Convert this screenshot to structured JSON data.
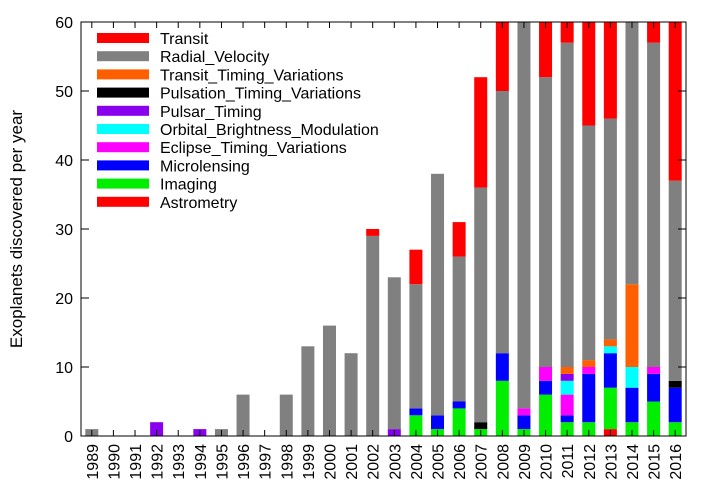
{
  "chart_data": {
    "type": "bar",
    "stacked": true,
    "title": "",
    "xlabel": "",
    "ylabel": "Exoplanets discovered per year",
    "ylim": [
      0,
      60
    ],
    "yticks": [
      0,
      10,
      20,
      30,
      40,
      50,
      60
    ],
    "grid": false,
    "legend_position": "top-left",
    "categories": [
      "1989",
      "1990",
      "1991",
      "1992",
      "1993",
      "1994",
      "1995",
      "1996",
      "1997",
      "1998",
      "1999",
      "2000",
      "2001",
      "2002",
      "2003",
      "2004",
      "2005",
      "2006",
      "2007",
      "2008",
      "2009",
      "2010",
      "2011",
      "2012",
      "2013",
      "2014",
      "2015",
      "2016"
    ],
    "series": [
      {
        "name": "Astrometry",
        "color": "#ff0000",
        "values": [
          0,
          0,
          0,
          0,
          0,
          0,
          0,
          0,
          0,
          0,
          0,
          0,
          0,
          0,
          0,
          0,
          0,
          0,
          0,
          0,
          0,
          0,
          0,
          0,
          1,
          0,
          0,
          0
        ]
      },
      {
        "name": "Imaging",
        "color": "#00ee00",
        "values": [
          0,
          0,
          0,
          0,
          0,
          0,
          0,
          0,
          0,
          0,
          0,
          0,
          0,
          0,
          0,
          3,
          1,
          4,
          1,
          8,
          1,
          6,
          2,
          2,
          6,
          2,
          5,
          2
        ]
      },
      {
        "name": "Microlensing",
        "color": "#0000ff",
        "values": [
          0,
          0,
          0,
          0,
          0,
          0,
          0,
          0,
          0,
          0,
          0,
          0,
          0,
          0,
          0,
          1,
          2,
          1,
          0,
          4,
          2,
          2,
          1,
          7,
          5,
          5,
          4,
          5
        ]
      },
      {
        "name": "Eclipse_Timing_Variations",
        "color": "#ff00ff",
        "values": [
          0,
          0,
          0,
          0,
          0,
          0,
          0,
          0,
          0,
          0,
          0,
          0,
          0,
          0,
          0,
          0,
          0,
          0,
          0,
          0,
          1,
          2,
          3,
          1,
          0,
          0,
          1,
          0
        ]
      },
      {
        "name": "Orbital_Brightness_Modulation",
        "color": "#00ffff",
        "values": [
          0,
          0,
          0,
          0,
          0,
          0,
          0,
          0,
          0,
          0,
          0,
          0,
          0,
          0,
          0,
          0,
          0,
          0,
          0,
          0,
          0,
          0,
          2,
          0,
          1,
          3,
          0,
          0
        ]
      },
      {
        "name": "Pulsar_Timing",
        "color": "#8800ee",
        "values": [
          0,
          0,
          0,
          2,
          0,
          1,
          0,
          0,
          0,
          0,
          0,
          0,
          0,
          0,
          1,
          0,
          0,
          0,
          0,
          0,
          0,
          0,
          1,
          0,
          0,
          0,
          0,
          0
        ]
      },
      {
        "name": "Pulsation_Timing_Variations",
        "color": "#000000",
        "values": [
          0,
          0,
          0,
          0,
          0,
          0,
          0,
          0,
          0,
          0,
          0,
          0,
          0,
          0,
          0,
          0,
          0,
          0,
          1,
          0,
          0,
          0,
          0,
          0,
          0,
          0,
          0,
          1
        ]
      },
      {
        "name": "Transit_Timing_Variations",
        "color": "#ff5f00",
        "values": [
          0,
          0,
          0,
          0,
          0,
          0,
          0,
          0,
          0,
          0,
          0,
          0,
          0,
          0,
          0,
          0,
          0,
          0,
          0,
          0,
          0,
          0,
          1,
          1,
          1,
          12,
          0,
          0
        ]
      },
      {
        "name": "Radial_Velocity",
        "color": "#808080",
        "values": [
          1,
          0,
          0,
          0,
          0,
          0,
          1,
          6,
          0,
          6,
          13,
          16,
          12,
          29,
          22,
          18,
          35,
          21,
          34,
          38,
          56,
          42,
          47,
          34,
          32,
          38,
          47,
          29
        ]
      },
      {
        "name": "Transit",
        "color": "#ff0000",
        "values": [
          0,
          0,
          0,
          0,
          0,
          0,
          0,
          0,
          0,
          0,
          0,
          0,
          0,
          1,
          0,
          5,
          0,
          5,
          16,
          10,
          0,
          8,
          3,
          15,
          14,
          0,
          3,
          23
        ]
      }
    ],
    "legend_order": [
      "Transit",
      "Radial_Velocity",
      "Transit_Timing_Variations",
      "Pulsation_Timing_Variations",
      "Pulsar_Timing",
      "Orbital_Brightness_Modulation",
      "Eclipse_Timing_Variations",
      "Microlensing",
      "Imaging",
      "Astrometry"
    ]
  }
}
